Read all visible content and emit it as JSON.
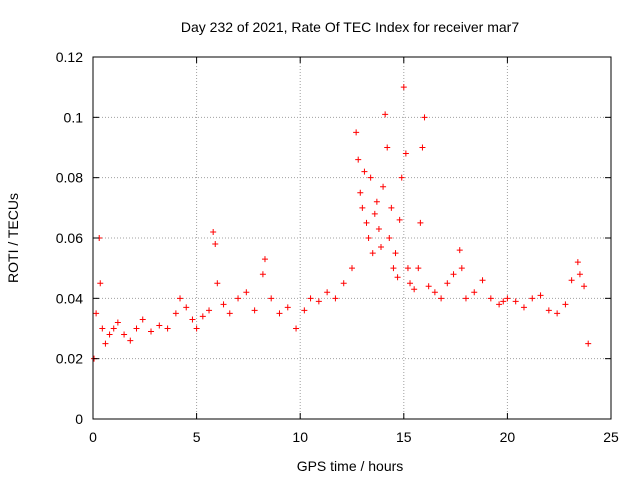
{
  "chart_data": {
    "type": "scatter",
    "title": "Day 232 of 2021, Rate Of TEC Index for receiver mar7",
    "xlabel": "GPS time / hours",
    "ylabel": "ROTI / TECUs",
    "xlim": [
      0,
      25
    ],
    "ylim": [
      0,
      0.12
    ],
    "x_ticks": [
      0,
      5,
      10,
      15,
      20,
      25
    ],
    "y_ticks": [
      0,
      0.02,
      0.04,
      0.06,
      0.08,
      0.1,
      0.12
    ],
    "x_tick_labels": [
      "0",
      "5",
      "10",
      "15",
      "20",
      "25"
    ],
    "y_tick_labels": [
      "0",
      "0.02",
      "0.04",
      "0.06",
      "0.08",
      "0.1",
      "0.12"
    ],
    "grid": true,
    "marker": "+",
    "color": "#ff0000",
    "series": [
      {
        "x": [
          0.05,
          0.15,
          0.3,
          0.35,
          0.45,
          0.6,
          0.8,
          1.0,
          1.2,
          1.5,
          1.8,
          2.1,
          2.4,
          2.8,
          3.2,
          3.6,
          4.0,
          4.2,
          4.5,
          4.8,
          5.0,
          5.3,
          5.6,
          5.8,
          5.9,
          6.0,
          6.3,
          6.6,
          7.0,
          7.4,
          7.8,
          8.2,
          8.3,
          8.6,
          9.0,
          9.4,
          9.8,
          10.2,
          10.5,
          10.9,
          11.3,
          11.7,
          12.1,
          12.5,
          12.7,
          12.8,
          12.9,
          13.0,
          13.1,
          13.2,
          13.3,
          13.4,
          13.5,
          13.6,
          13.7,
          13.8,
          13.9,
          14.0,
          14.1,
          14.2,
          14.3,
          14.4,
          14.5,
          14.6,
          14.7,
          14.8,
          14.9,
          15.0,
          15.1,
          15.2,
          15.3,
          15.5,
          15.7,
          15.8,
          15.9,
          16.0,
          16.2,
          16.5,
          16.8,
          17.1,
          17.4,
          17.7,
          17.8,
          18.0,
          18.4,
          18.8,
          19.2,
          19.6,
          19.8,
          20.0,
          20.4,
          20.8,
          21.2,
          21.6,
          22.0,
          22.4,
          22.8,
          23.1,
          23.4,
          23.5,
          23.7,
          23.9
        ],
        "y": [
          0.02,
          0.035,
          0.06,
          0.045,
          0.03,
          0.025,
          0.028,
          0.03,
          0.032,
          0.028,
          0.026,
          0.03,
          0.033,
          0.029,
          0.031,
          0.03,
          0.035,
          0.04,
          0.037,
          0.033,
          0.03,
          0.034,
          0.036,
          0.062,
          0.058,
          0.045,
          0.038,
          0.035,
          0.04,
          0.042,
          0.036,
          0.048,
          0.053,
          0.04,
          0.035,
          0.037,
          0.03,
          0.036,
          0.04,
          0.039,
          0.042,
          0.04,
          0.045,
          0.05,
          0.095,
          0.086,
          0.075,
          0.07,
          0.082,
          0.065,
          0.06,
          0.08,
          0.055,
          0.068,
          0.072,
          0.063,
          0.057,
          0.077,
          0.101,
          0.09,
          0.06,
          0.07,
          0.05,
          0.055,
          0.047,
          0.066,
          0.08,
          0.11,
          0.088,
          0.05,
          0.045,
          0.043,
          0.05,
          0.065,
          0.09,
          0.1,
          0.044,
          0.042,
          0.04,
          0.045,
          0.048,
          0.056,
          0.05,
          0.04,
          0.042,
          0.046,
          0.04,
          0.038,
          0.039,
          0.04,
          0.039,
          0.037,
          0.04,
          0.041,
          0.036,
          0.035,
          0.038,
          0.046,
          0.052,
          0.048,
          0.044,
          0.025
        ]
      }
    ]
  }
}
